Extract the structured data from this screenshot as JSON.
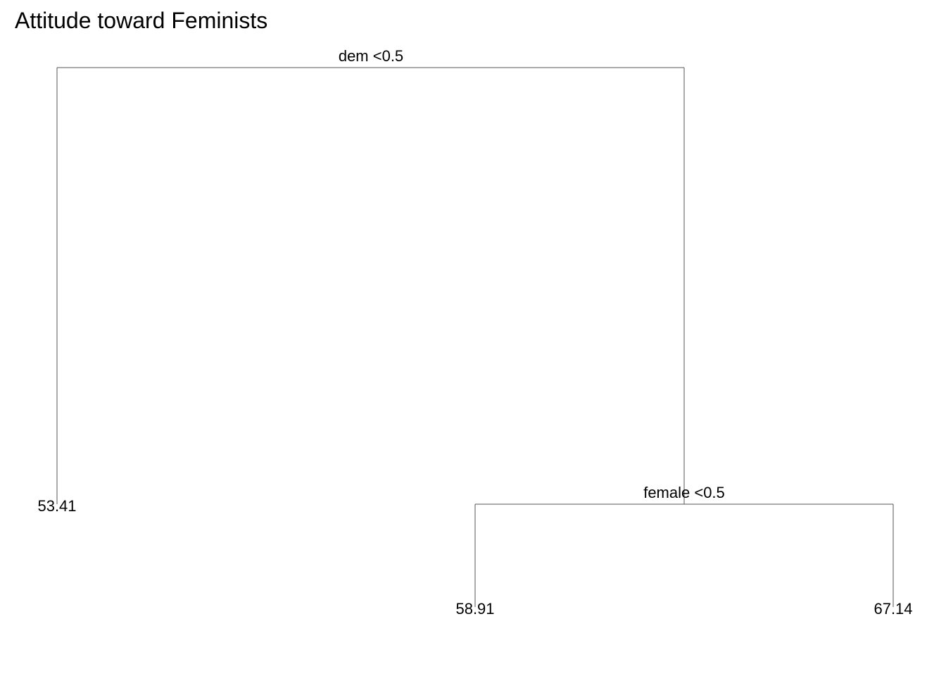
{
  "title": "Attitude toward Feminists",
  "tree": {
    "root": {
      "split": "dem <0.5",
      "left": {
        "leaf": "53.41"
      },
      "right": {
        "split": "female <0.5",
        "left": {
          "leaf": "58.91"
        },
        "right": {
          "leaf": "67.14"
        }
      }
    }
  }
}
